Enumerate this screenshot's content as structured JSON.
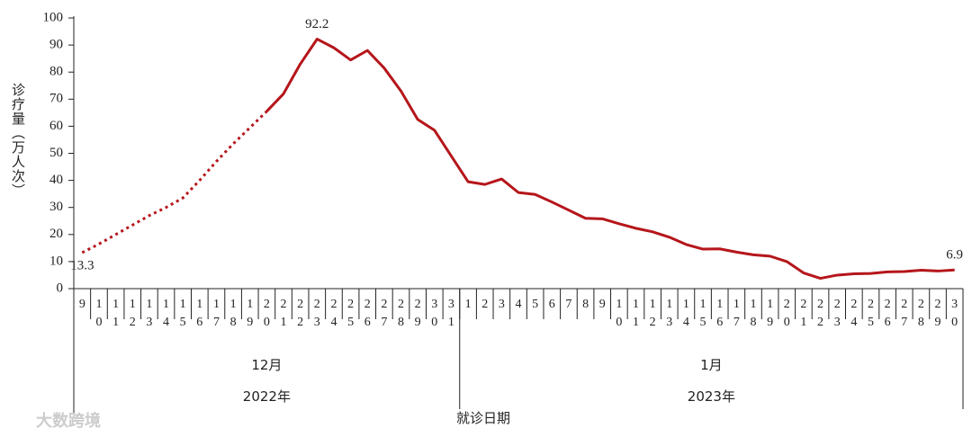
{
  "chart_data": {
    "type": "line",
    "y_label": "诊疗量（万人次）",
    "x_label": "就诊日期",
    "categories": [
      "9",
      "10",
      "11",
      "12",
      "13",
      "14",
      "15",
      "16",
      "17",
      "18",
      "19",
      "20",
      "21",
      "22",
      "23",
      "24",
      "25",
      "26",
      "27",
      "28",
      "29",
      "30",
      "31",
      "1",
      "2",
      "3",
      "4",
      "5",
      "6",
      "7",
      "8",
      "9",
      "10",
      "11",
      "12",
      "13",
      "14",
      "15",
      "16",
      "17",
      "18",
      "19",
      "20",
      "21",
      "22",
      "23",
      "24",
      "25",
      "26",
      "27",
      "28",
      "29",
      "30"
    ],
    "groups": [
      {
        "month": "12月",
        "year": "2022年",
        "size": 23
      },
      {
        "month": "1月",
        "year": "2023年",
        "size": 30
      }
    ],
    "values": [
      13.3,
      16.5,
      20,
      23.5,
      27,
      30,
      33.5,
      40,
      47,
      53.5,
      59.5,
      65.5,
      72,
      83,
      92.2,
      89,
      84.5,
      88,
      81.5,
      73,
      62.5,
      58.5,
      49,
      39.5,
      38.5,
      40.5,
      35.5,
      34.8,
      32,
      29,
      26,
      25.8,
      24,
      22.3,
      21,
      19,
      16.3,
      14.6,
      14.7,
      13.5,
      12.5,
      12,
      10,
      5.8,
      3.8,
      5,
      5.5,
      5.6,
      6.2,
      6.3,
      6.8,
      6.5,
      6.9
    ],
    "dotted_until_index": 11,
    "labeled_indices": [
      0,
      14,
      52
    ],
    "color": "#b5161b",
    "ylim": [
      0,
      100
    ],
    "yticks": [
      0,
      10,
      20,
      30,
      40,
      50,
      60,
      70,
      80,
      90,
      100
    ],
    "watermark": "大数跨境"
  }
}
